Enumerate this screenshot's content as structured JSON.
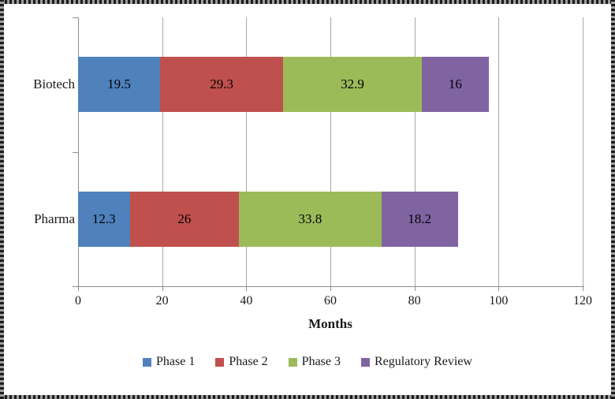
{
  "chart_data": {
    "type": "bar",
    "orientation": "horizontal-stacked",
    "categories": [
      "Biotech",
      "Pharma"
    ],
    "series": [
      {
        "name": "Phase 1",
        "color": "#4F81BD",
        "values": [
          19.5,
          12.3
        ],
        "labels": [
          "19.5",
          "12.3"
        ]
      },
      {
        "name": "Phase 2",
        "color": "#C0504D",
        "values": [
          29.3,
          26
        ],
        "labels": [
          "29.3",
          "26"
        ]
      },
      {
        "name": "Phase 3",
        "color": "#9BBB59",
        "values": [
          32.9,
          33.8
        ],
        "labels": [
          "32.9",
          "33.8"
        ]
      },
      {
        "name": "Regulatory Review",
        "color": "#8064A2",
        "values": [
          16,
          18.2
        ],
        "labels": [
          "16",
          "18.2"
        ]
      }
    ],
    "xlabel": "Months",
    "xlim": [
      0,
      120
    ],
    "xticks": [
      0,
      20,
      40,
      60,
      80,
      100,
      120
    ],
    "xtick_labels": [
      "0",
      "20",
      "40",
      "60",
      "80",
      "100",
      "120"
    ],
    "grid": true,
    "legend_position": "bottom",
    "legend_entries": [
      "Phase 1",
      "Phase 2",
      "Phase 3",
      "Regulatory Review"
    ]
  }
}
